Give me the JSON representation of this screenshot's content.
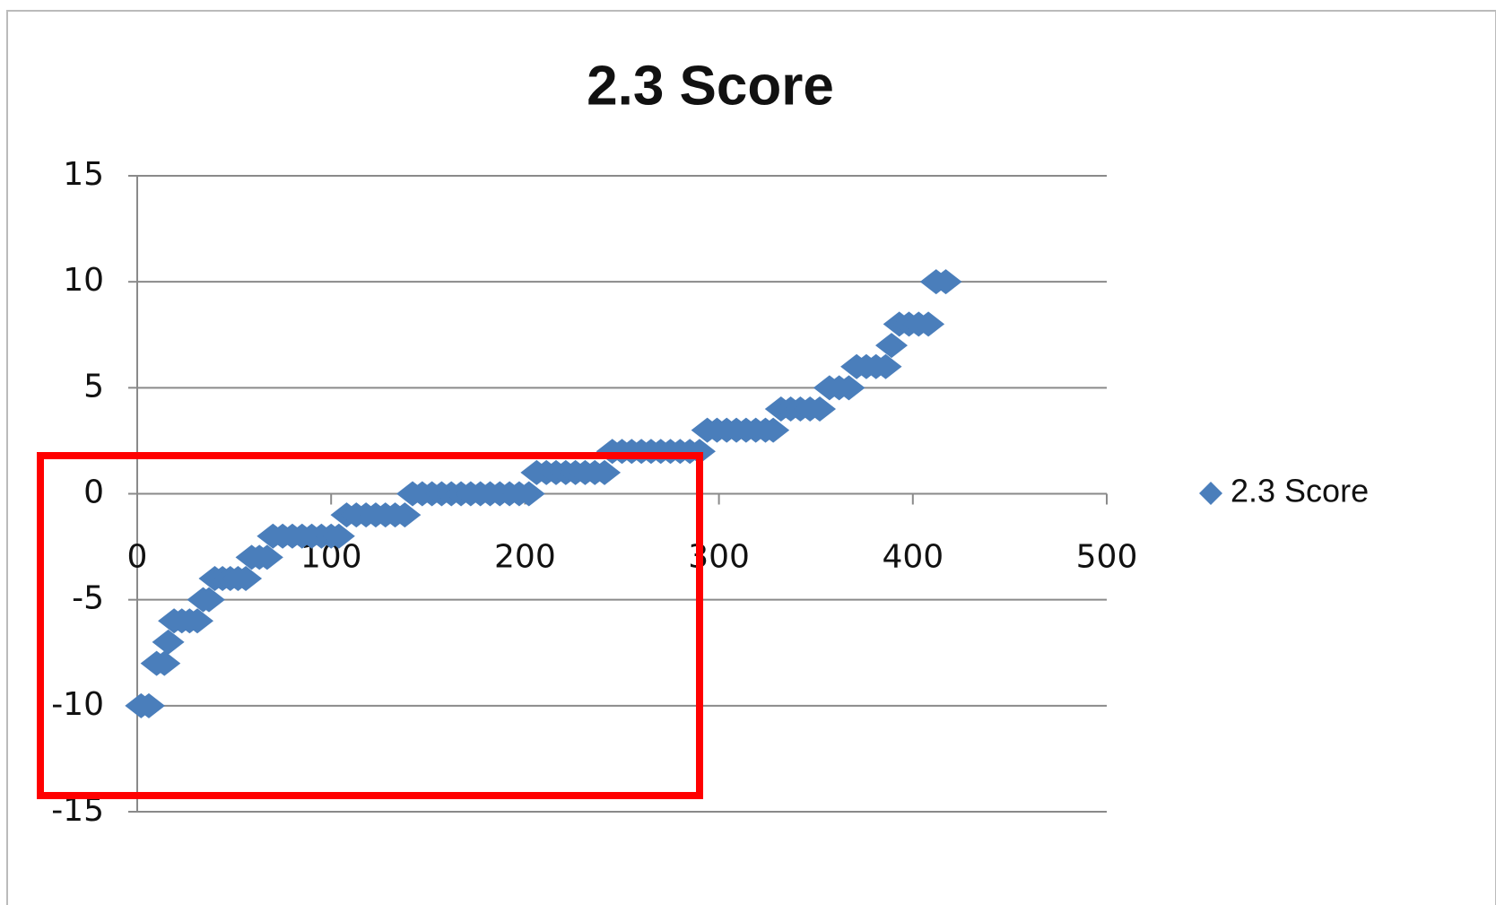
{
  "chart_data": {
    "type": "scatter",
    "title": "2.3 Score",
    "x": [
      2,
      6,
      10,
      14,
      16,
      19,
      23,
      27,
      31,
      34,
      37,
      40,
      44,
      48,
      52,
      56,
      59,
      63,
      67,
      70,
      75,
      80,
      85,
      90,
      95,
      100,
      104,
      108,
      113,
      118,
      123,
      128,
      133,
      138,
      142,
      147,
      152,
      157,
      162,
      167,
      172,
      177,
      182,
      187,
      192,
      197,
      202,
      206,
      211,
      216,
      221,
      226,
      231,
      236,
      241,
      245,
      250,
      255,
      260,
      265,
      270,
      275,
      280,
      285,
      290,
      294,
      299,
      304,
      309,
      314,
      319,
      324,
      328,
      332,
      337,
      342,
      347,
      352,
      357,
      362,
      367,
      371,
      376,
      381,
      386,
      389,
      393,
      398,
      403,
      408,
      412,
      417
    ],
    "series": [
      {
        "name": "2.3 Score",
        "color": "#4a7ebb",
        "values": [
          -10,
          -10,
          -8,
          -8,
          -7,
          -6,
          -6,
          -6,
          -6,
          -5,
          -5,
          -4,
          -4,
          -4,
          -4,
          -4,
          -3,
          -3,
          -3,
          -2,
          -2,
          -2,
          -2,
          -2,
          -2,
          -2,
          -2,
          -1,
          -1,
          -1,
          -1,
          -1,
          -1,
          -1,
          0,
          0,
          0,
          0,
          0,
          0,
          0,
          0,
          0,
          0,
          0,
          0,
          0,
          1,
          1,
          1,
          1,
          1,
          1,
          1,
          1,
          2,
          2,
          2,
          2,
          2,
          2,
          2,
          2,
          2,
          2,
          3,
          3,
          3,
          3,
          3,
          3,
          3,
          3,
          4,
          4,
          4,
          4,
          4,
          5,
          5,
          5,
          6,
          6,
          6,
          6,
          7,
          8,
          8,
          8,
          8,
          10,
          10
        ]
      }
    ],
    "xlim": [
      0,
      500
    ],
    "xticks": [
      0,
      100,
      200,
      300,
      400,
      500
    ],
    "ylim": [
      -15,
      15
    ],
    "yticks": [
      -15,
      -10,
      -5,
      0,
      5,
      10,
      15
    ],
    "grid": true,
    "legend": "right"
  }
}
